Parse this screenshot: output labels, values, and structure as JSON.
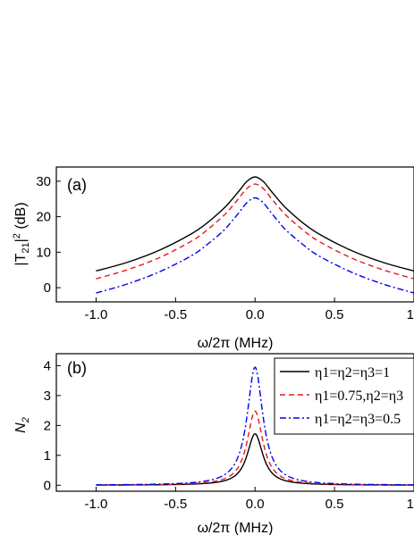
{
  "chart_data": [
    {
      "type": "line",
      "panel_label": "(a)",
      "xlabel": "ω/2π (MHz)",
      "ylabel_main": "|T",
      "ylabel_sub": "21",
      "ylabel_rest": "|",
      "ylabel_sup": "2",
      "ylabel_unit": " (dB)",
      "xlim": [
        -1.25,
        1.0
      ],
      "ylim": [
        -4,
        34
      ],
      "xticks": [
        -1.0,
        -0.5,
        0.0,
        0.5,
        1.0
      ],
      "xtick_labels": [
        "-1.0",
        "-0.5",
        "0.0",
        "0.5",
        "1"
      ],
      "yticks": [
        0,
        10,
        20,
        30
      ],
      "ytick_labels": [
        "0",
        "10",
        "20",
        "30"
      ],
      "series": [
        {
          "style": "solid",
          "color": "#000000",
          "x": [
            -1.0,
            -0.8,
            -0.6,
            -0.4,
            -0.3,
            -0.2,
            -0.15,
            -0.1,
            -0.05,
            0.0,
            0.05,
            0.1,
            0.15,
            0.2,
            0.3,
            0.4,
            0.6,
            0.8,
            1.0
          ],
          "y": [
            4.7,
            7.2,
            10.6,
            15.2,
            18.3,
            22.2,
            24.6,
            27.3,
            30.0,
            31.2,
            30.0,
            27.3,
            24.6,
            22.2,
            18.3,
            15.2,
            10.6,
            7.2,
            4.7
          ]
        },
        {
          "style": "dash",
          "color": "#e41a1c",
          "x": [
            -1.0,
            -0.8,
            -0.6,
            -0.4,
            -0.3,
            -0.2,
            -0.15,
            -0.1,
            -0.05,
            0.0,
            0.05,
            0.1,
            0.15,
            0.2,
            0.3,
            0.4,
            0.6,
            0.8,
            1.0
          ],
          "y": [
            2.5,
            5.1,
            8.5,
            13.1,
            16.3,
            20.2,
            22.6,
            25.3,
            28.0,
            29.2,
            28.0,
            25.3,
            22.6,
            20.2,
            16.3,
            13.1,
            8.5,
            5.1,
            2.5
          ]
        },
        {
          "style": "dashdot",
          "color": "#0000ee",
          "x": [
            -1.0,
            -0.8,
            -0.6,
            -0.4,
            -0.3,
            -0.2,
            -0.15,
            -0.1,
            -0.05,
            0.0,
            0.05,
            0.1,
            0.15,
            0.2,
            0.3,
            0.4,
            0.6,
            0.8,
            1.0
          ],
          "y": [
            -1.5,
            1.1,
            4.5,
            9.0,
            12.2,
            16.0,
            18.5,
            21.2,
            24.0,
            25.3,
            24.0,
            21.2,
            18.5,
            16.0,
            12.2,
            9.0,
            4.5,
            1.1,
            -1.5
          ]
        }
      ]
    },
    {
      "type": "line",
      "panel_label": "(b)",
      "xlabel": "ω/2π (MHz)",
      "ylabel": "N",
      "ylabel_sub": "2",
      "xlim": [
        -1.25,
        1.0
      ],
      "ylim": [
        -0.2,
        4.4
      ],
      "xticks": [
        -1.0,
        -0.5,
        0.0,
        0.5,
        1.0
      ],
      "xtick_labels": [
        "-1.0",
        "-0.5",
        "0.0",
        "0.5",
        "1"
      ],
      "yticks": [
        0,
        1,
        2,
        3,
        4
      ],
      "ytick_labels": [
        "0",
        "1",
        "2",
        "3",
        "4"
      ],
      "legend": "top-right",
      "series": [
        {
          "name": "η1=η2=η3=1",
          "style": "solid",
          "color": "#000000",
          "peak": 1.72
        },
        {
          "name": "η1=0.75,η2=η3",
          "style": "dash",
          "color": "#e41a1c",
          "peak": 2.48
        },
        {
          "name": "η1=η2=η3=0.5",
          "style": "dashdot",
          "color": "#0000ee",
          "peak": 3.95
        }
      ],
      "lineshape": "lorentzian",
      "halfwidth_mhz": 0.06
    }
  ]
}
